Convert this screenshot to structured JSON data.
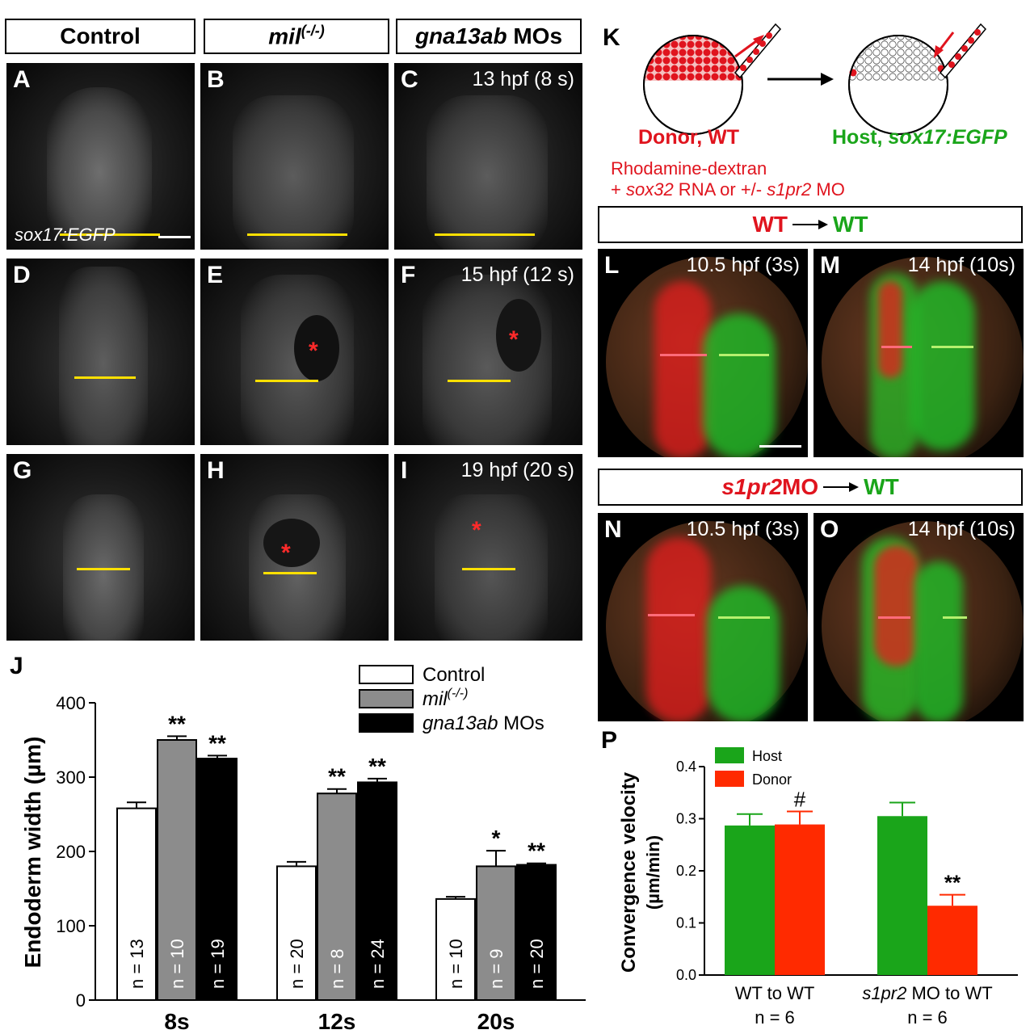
{
  "headers": {
    "control": "Control",
    "mil": "mil",
    "mil_sup": "(-/-)",
    "gna13": "gna13ab",
    "gna13_suffix": " MOs"
  },
  "panels": {
    "A": "A",
    "B": "B",
    "C": "C",
    "D": "D",
    "E": "E",
    "F": "F",
    "G": "G",
    "H": "H",
    "I": "I",
    "time_C": "13 hpf (8 s)",
    "time_F": "15 hpf (12 s)",
    "time_I": "19 hpf (20 s)",
    "sox17_label": "sox17:EGFP",
    "star": "*"
  },
  "K": {
    "label": "K",
    "donor": "Donor, WT",
    "host_prefix": "Host, ",
    "host_italic": "sox17:EGFP",
    "rhod": "Rhodamine-dextran",
    "rhod2_a": "+ ",
    "rhod2_b": "sox32",
    "rhod2_c": " RNA or +/- ",
    "rhod2_d": "s1pr2",
    "rhod2_e": " MO"
  },
  "transplant": {
    "wt_left": "WT",
    "wt_right": "WT",
    "s1_left": "s1pr2",
    "s1_mo": " MO",
    "s1_right": "WT"
  },
  "fl": {
    "L": "L",
    "M": "M",
    "N": "N",
    "O": "O",
    "t_L": "10.5 hpf (3s)",
    "t_M": "14 hpf (10s)",
    "t_N": "10.5 hpf (3s)",
    "t_O": "14 hpf (10s)"
  },
  "colors": {
    "control": "#ffffff",
    "mil": "#8c8c8c",
    "gna13": "#000000",
    "host": "#1aa51a",
    "donor": "#ff2a00",
    "red_text": "#e0141e",
    "green_text": "#1aa51a"
  },
  "chart_data": [
    {
      "panel": "J",
      "type": "bar",
      "categories": [
        "8s",
        "12s",
        "20s"
      ],
      "ylabel": "Endoderm width (µm)",
      "ylim": [
        0,
        400
      ],
      "yticks": [
        "0",
        "100",
        "200",
        "300",
        "400"
      ],
      "legend": [
        "Control",
        "mil(-/-)",
        "gna13ab MOs"
      ],
      "series": [
        {
          "name": "Control",
          "values": [
            258,
            180,
            136
          ],
          "errors": [
            8,
            6,
            3
          ],
          "n": [
            "n = 13",
            "n = 20",
            "n = 10"
          ],
          "sig": [
            "",
            "",
            ""
          ]
        },
        {
          "name": "mil(-/-)",
          "values": [
            350,
            278,
            180
          ],
          "errors": [
            5,
            6,
            21
          ],
          "n": [
            "n = 10",
            "n = 8",
            "n = 9"
          ],
          "sig": [
            "**",
            "**",
            "*"
          ]
        },
        {
          "name": "gna13ab MOs",
          "values": [
            325,
            293,
            182
          ],
          "errors": [
            4,
            5,
            2
          ],
          "n": [
            "n = 19",
            "n = 24",
            "n = 20"
          ],
          "sig": [
            "**",
            "**",
            "**"
          ]
        }
      ]
    },
    {
      "panel": "P",
      "type": "bar",
      "categories": [
        "WT to WT",
        "s1pr2 MO to WT"
      ],
      "category_italic": [
        "",
        "s1pr2"
      ],
      "category_rest": [
        "WT to WT",
        " MO to WT"
      ],
      "subcategories": [
        "n = 6",
        "n = 6"
      ],
      "ylabel": "Convergence velocity",
      "ylabel2": "(µm/min)",
      "ylim": [
        0,
        0.4
      ],
      "yticks": [
        "0.0",
        "0.1",
        "0.2",
        "0.3",
        "0.4"
      ],
      "legend": [
        "Host",
        "Donor"
      ],
      "series": [
        {
          "name": "Host",
          "values": [
            0.287,
            0.305
          ],
          "errors": [
            0.022,
            0.026
          ],
          "sig": [
            "",
            ""
          ]
        },
        {
          "name": "Donor",
          "values": [
            0.289,
            0.133
          ],
          "errors": [
            0.025,
            0.021
          ],
          "sig": [
            "#",
            "**"
          ]
        }
      ]
    }
  ],
  "panel_labels": {
    "J": "J",
    "P": "P"
  }
}
